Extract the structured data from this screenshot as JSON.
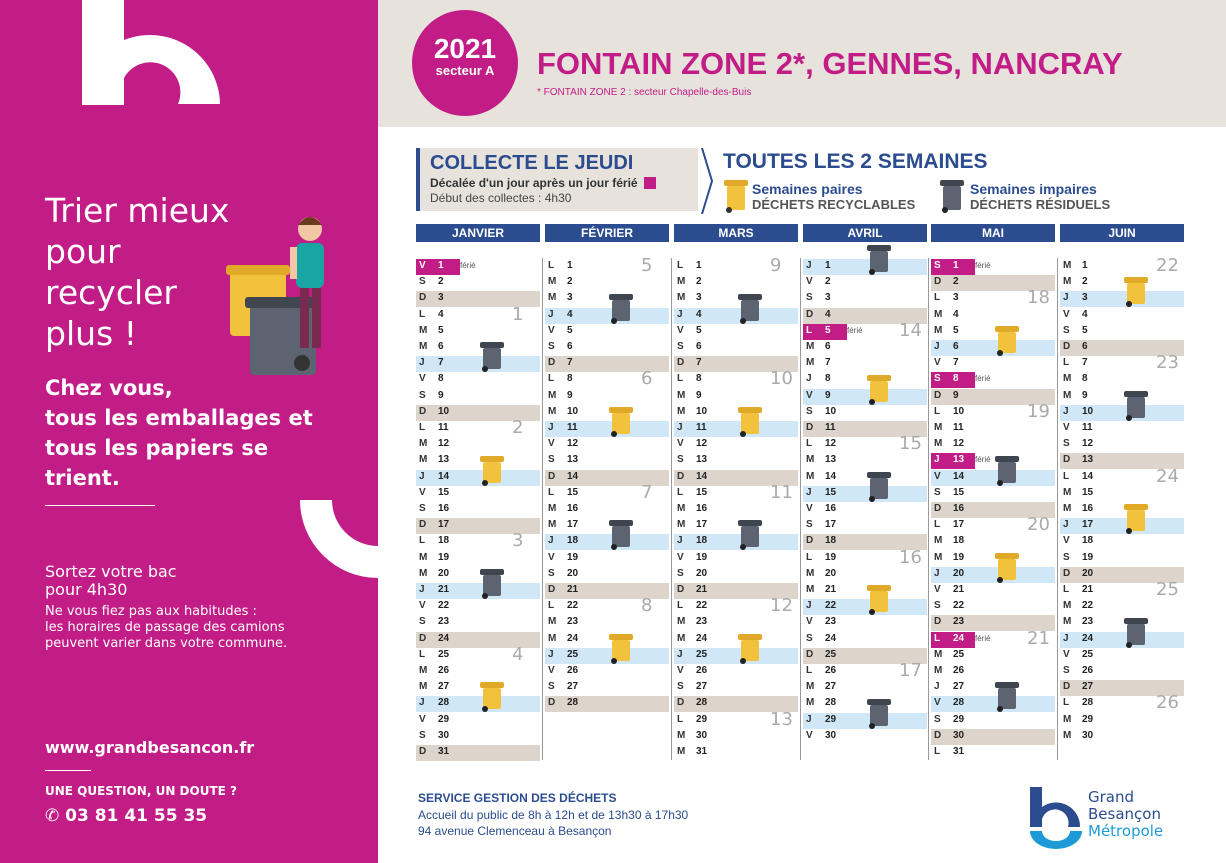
{
  "left_panel": {
    "slogan": "Trier mieux pour recycler plus !",
    "slogan2_lines": [
      "Chez vous,",
      "tous les emballages et",
      "tous les papiers se trient."
    ],
    "bac_title_lines": [
      "Sortez votre bac",
      "pour 4h30"
    ],
    "bac_text_lines": [
      "Ne vous fiez pas aux habitudes :",
      "les horaires de passage des camions",
      "peuvent varier dans votre commune."
    ],
    "website": "www.grandbesancon.fr",
    "question": "UNE QUESTION, UN DOUTE ?",
    "phone": "✆ 03 81 41 55 35"
  },
  "header": {
    "year": "2021",
    "sector": "secteur A",
    "title": "FONTAIN ZONE 2*, GENNES, NANCRAY",
    "subtitle": "* FONTAIN ZONE 2 : secteur Chapelle-des-Buis"
  },
  "collect": {
    "title": "COLLECTE LE JEUDI",
    "holiday_note": "Décalée d'un jour après un jour férié",
    "start_time": "Début des collectes : 4h30",
    "frequency": "TOUTES LES 2 SEMAINES"
  },
  "legend": {
    "even_title": "Semaines paires",
    "even_type": "DÉCHETS RECYCLABLES",
    "odd_title": "Semaines impaires",
    "odd_type": "DÉCHETS RÉSIDUELS",
    "colors": {
      "yellow_bin": "#f3c23c",
      "grey_bin": "#5b6470",
      "brand": "#c21c87",
      "blue": "#2b4c8e"
    }
  },
  "ferie_label": "férié",
  "months": [
    {
      "name": "JANVIER",
      "start_dow": 5,
      "days": 31,
      "holidays": [
        1
      ],
      "collections": [
        {
          "day": 7,
          "bin": "grey"
        },
        {
          "day": 14,
          "bin": "yellow"
        },
        {
          "day": 21,
          "bin": "grey"
        },
        {
          "day": 28,
          "bin": "yellow"
        }
      ],
      "weeks": [
        {
          "label": "1",
          "after_day": 3
        },
        {
          "label": "2",
          "after_day": 10
        },
        {
          "label": "3",
          "after_day": 17
        },
        {
          "label": "4",
          "after_day": 24
        }
      ]
    },
    {
      "name": "FÉVRIER",
      "start_dow": 1,
      "days": 28,
      "holidays": [],
      "collections": [
        {
          "day": 4,
          "bin": "grey"
        },
        {
          "day": 11,
          "bin": "yellow"
        },
        {
          "day": 18,
          "bin": "grey"
        },
        {
          "day": 25,
          "bin": "yellow"
        }
      ],
      "weeks": [
        {
          "label": "5",
          "after_day": 0
        },
        {
          "label": "6",
          "after_day": 7
        },
        {
          "label": "7",
          "after_day": 14
        },
        {
          "label": "8",
          "after_day": 21
        }
      ]
    },
    {
      "name": "MARS",
      "start_dow": 1,
      "days": 31,
      "holidays": [],
      "collections": [
        {
          "day": 4,
          "bin": "grey"
        },
        {
          "day": 11,
          "bin": "yellow"
        },
        {
          "day": 18,
          "bin": "grey"
        },
        {
          "day": 25,
          "bin": "yellow"
        }
      ],
      "weeks": [
        {
          "label": "9",
          "after_day": 0
        },
        {
          "label": "10",
          "after_day": 7
        },
        {
          "label": "11",
          "after_day": 14
        },
        {
          "label": "12",
          "after_day": 21
        },
        {
          "label": "13",
          "after_day": 28
        }
      ]
    },
    {
      "name": "AVRIL",
      "start_dow": 4,
      "days": 30,
      "holidays": [
        5
      ],
      "collections": [
        {
          "day": 1,
          "bin": "grey"
        },
        {
          "day": 9,
          "bin": "yellow"
        },
        {
          "day": 15,
          "bin": "grey"
        },
        {
          "day": 22,
          "bin": "yellow"
        },
        {
          "day": 29,
          "bin": "grey"
        }
      ],
      "weeks": [
        {
          "label": "14",
          "after_day": 4
        },
        {
          "label": "15",
          "after_day": 11
        },
        {
          "label": "16",
          "after_day": 18
        },
        {
          "label": "17",
          "after_day": 25
        }
      ]
    },
    {
      "name": "MAI",
      "start_dow": 6,
      "days": 31,
      "holidays": [
        1,
        8,
        13,
        24
      ],
      "collections": [
        {
          "day": 6,
          "bin": "yellow"
        },
        {
          "day": 14,
          "bin": "grey"
        },
        {
          "day": 20,
          "bin": "yellow"
        },
        {
          "day": 28,
          "bin": "grey"
        }
      ],
      "weeks": [
        {
          "label": "18",
          "after_day": 2
        },
        {
          "label": "19",
          "after_day": 9
        },
        {
          "label": "20",
          "after_day": 16
        },
        {
          "label": "21",
          "after_day": 23
        }
      ]
    },
    {
      "name": "JUIN",
      "start_dow": 2,
      "days": 30,
      "holidays": [],
      "collections": [
        {
          "day": 3,
          "bin": "yellow"
        },
        {
          "day": 10,
          "bin": "grey"
        },
        {
          "day": 17,
          "bin": "yellow"
        },
        {
          "day": 24,
          "bin": "grey"
        }
      ],
      "weeks": [
        {
          "label": "22",
          "after_day": 0
        },
        {
          "label": "23",
          "after_day": 6
        },
        {
          "label": "24",
          "after_day": 13
        },
        {
          "label": "25",
          "after_day": 20
        },
        {
          "label": "26",
          "after_day": 27
        }
      ]
    }
  ],
  "day_letters": [
    "D",
    "L",
    "M",
    "M",
    "J",
    "V",
    "S"
  ],
  "footer": {
    "service": "SERVICE GESTION DES DÉCHETS",
    "hours": "Accueil du public de 8h à 12h et de 13h30 à 17h30",
    "address": "94 avenue Clemenceau à Besançon",
    "brand_lines": [
      "Grand",
      "Besançon"
    ],
    "brand_metro": "Métropole"
  }
}
